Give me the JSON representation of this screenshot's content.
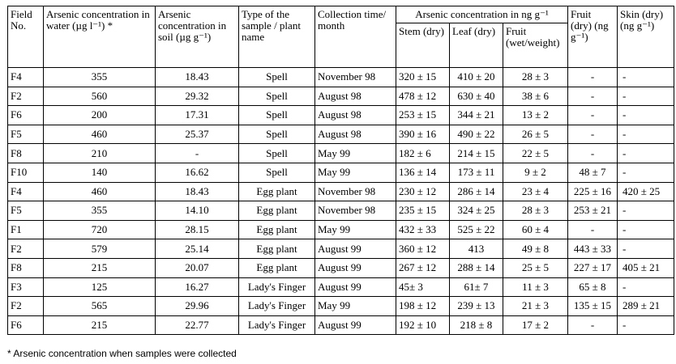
{
  "headers": {
    "field": "Field\nNo.",
    "water": "Arsenic concentration\nin water (µg l⁻¹) *",
    "soil": "Arsenic\nconcentration in\nsoil (µg g⁻¹)",
    "type": "Type of the\nsample / plant\nname",
    "collection": "Collection time/\nmonth",
    "plant_group": "Arsenic concentration in ng g⁻¹",
    "stem": "Stem\n(dry)",
    "leaf": "Leaf (dry)",
    "fruit_wet": "Fruit\n(wet/weight)",
    "fruit_dry": "Fruit\n(dry)\n(ng g⁻¹)",
    "skin": "Skin (dry)\n(ng g⁻¹)"
  },
  "rows": [
    [
      "F4",
      "355",
      "18.43",
      "Spell",
      "November 98",
      "320 ± 15",
      "410 ± 20",
      "28 ± 3",
      "-",
      "-"
    ],
    [
      "F2",
      "560",
      "29.32",
      "Spell",
      "August 98",
      "478 ± 12",
      "630 ± 40",
      "38 ± 6",
      "-",
      "-"
    ],
    [
      "F6",
      "200",
      "17.31",
      "Spell",
      "August 98",
      "253 ± 15",
      "344 ± 21",
      "13 ± 2",
      "-",
      "-"
    ],
    [
      "F5",
      "460",
      "25.37",
      "Spell",
      "August 98",
      "390 ± 16",
      "490 ± 22",
      "26 ± 5",
      "-",
      "-"
    ],
    [
      "F8",
      "210",
      "-",
      "Spell",
      "May 99",
      "182 ± 6",
      "214 ± 15",
      "22 ± 5",
      "-",
      "-"
    ],
    [
      "F10",
      "140",
      "16.62",
      "Spell",
      "May 99",
      "136 ± 14",
      "173 ± 11",
      "9 ± 2",
      "48 ± 7",
      "-"
    ],
    [
      "F4",
      "460",
      "18.43",
      "Egg plant",
      "November 98",
      "230 ± 12",
      "286 ± 14",
      "23 ± 4",
      "225 ± 16",
      "420 ± 25"
    ],
    [
      "F5",
      "355",
      "14.10",
      "Egg plant",
      "November 98",
      "235 ± 15",
      "324 ± 25",
      "28 ± 3",
      "253 ± 21",
      "-"
    ],
    [
      "F1",
      "720",
      "28.15",
      "Egg plant",
      "May 99",
      "432 ± 33",
      "525 ± 22",
      "60 ± 4",
      "-",
      "-"
    ],
    [
      "F2",
      "579",
      "25.14",
      "Egg plant",
      "August 99",
      "360 ± 12",
      "413",
      "49 ± 8",
      "443 ± 33",
      "-"
    ],
    [
      "F8",
      "215",
      "20.07",
      "Egg plant",
      "August 99",
      "267 ± 12",
      "288 ± 14",
      "25 ± 5",
      "227 ± 17",
      "405 ± 21"
    ],
    [
      "F3",
      "125",
      "16.27",
      "Lady's Finger",
      "August 99",
      "45± 3",
      "61± 7",
      "11 ± 3",
      "65 ± 8",
      "-"
    ],
    [
      "F2",
      "565",
      "29.96",
      "Lady's Finger",
      "May 99",
      "198 ± 12",
      "239 ± 13",
      "21 ± 3",
      "135 ± 15",
      "289 ± 21"
    ],
    [
      "F6",
      "215",
      "22.77",
      "Lady's Finger",
      "August 99",
      "192 ± 10",
      "218 ± 8",
      "17 ± 2",
      "-",
      "-"
    ]
  ],
  "footnote": "* Arsenic concentration when samples were collected"
}
